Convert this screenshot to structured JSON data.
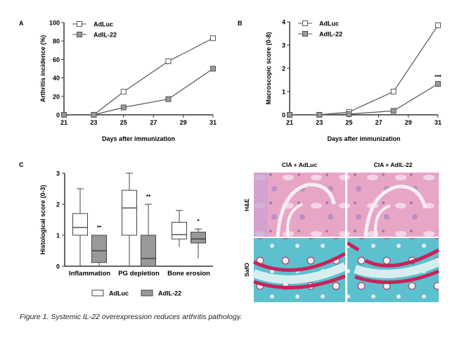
{
  "caption": "Figure 1. Systemic IL-22 overexpression reduces arthritis pathology.",
  "colors": {
    "adluc_fill": "#ffffff",
    "adil22_fill": "#999999",
    "line": "#555555"
  },
  "chart_data": [
    {
      "panel": "A",
      "type": "line",
      "xlabel": "Days after immunization",
      "ylabel": "Arthritis incidence (%)",
      "xlim": [
        21,
        31
      ],
      "ylim": [
        0,
        100
      ],
      "xticks": [
        21,
        23,
        25,
        27,
        29,
        31
      ],
      "yticks": [
        0,
        20,
        40,
        60,
        80,
        100
      ],
      "legend": "top-left",
      "x": [
        21,
        23,
        25,
        28,
        31
      ],
      "series": [
        {
          "name": "AdLuc",
          "marker": "open-square",
          "values": [
            0,
            0,
            25,
            58,
            83
          ]
        },
        {
          "name": "AdIL-22",
          "marker": "gray-square",
          "values": [
            0,
            0,
            8,
            17,
            50
          ]
        }
      ]
    },
    {
      "panel": "B",
      "type": "line",
      "xlabel": "Days after immunization",
      "ylabel": "Macroscopic score (0-8)",
      "xlim": [
        21,
        31
      ],
      "ylim": [
        0,
        4
      ],
      "xticks": [
        21,
        23,
        25,
        27,
        29,
        31
      ],
      "yticks": [
        0,
        1,
        2,
        3,
        4
      ],
      "legend": "top-left",
      "x": [
        21,
        23,
        25,
        28,
        31
      ],
      "series": [
        {
          "name": "AdLuc",
          "marker": "open-square",
          "values": [
            0,
            0,
            0.12,
            1.0,
            3.85
          ]
        },
        {
          "name": "AdIL-22",
          "marker": "gray-square",
          "values": [
            0,
            0,
            0.03,
            0.17,
            1.33
          ]
        }
      ],
      "annotations": [
        {
          "x": 31,
          "text": "***"
        }
      ]
    },
    {
      "panel": "C",
      "type": "box",
      "ylabel": "Histological score (0-3)",
      "ylim": [
        0,
        3
      ],
      "yticks": [
        0,
        1,
        2,
        3
      ],
      "categories": [
        "Inflammation",
        "PG depletion",
        "Bone erosion"
      ],
      "legend": "bottom",
      "series": [
        {
          "name": "AdLuc",
          "boxes": [
            {
              "min": 0,
              "q1": 1,
              "median": 1.25,
              "q3": 1.7,
              "max": 2.5
            },
            {
              "min": 0,
              "q1": 1,
              "median": 1.88,
              "q3": 2.45,
              "max": 3
            },
            {
              "min": 0.62,
              "q1": 0.88,
              "median": 1.02,
              "q3": 1.42,
              "max": 1.8
            }
          ]
        },
        {
          "name": "AdIL-22",
          "boxes": [
            {
              "min": 0,
              "q1": 0.12,
              "median": 0.5,
              "q3": 1,
              "max": 1
            },
            {
              "min": 0,
              "q1": 0,
              "median": 0.25,
              "q3": 1,
              "max": 2
            },
            {
              "min": 0.25,
              "q1": 0.75,
              "median": 0.88,
              "q3": 1.1,
              "max": 1.2
            }
          ]
        }
      ],
      "annotations": [
        "**",
        "**",
        "*"
      ]
    }
  ],
  "histology": {
    "panel": "",
    "columns": [
      "CIA + AdLuc",
      "CIA + AdIL-22"
    ],
    "rows": [
      "H&E",
      "SafO"
    ]
  },
  "panel_labels": [
    "A",
    "B",
    "C"
  ]
}
